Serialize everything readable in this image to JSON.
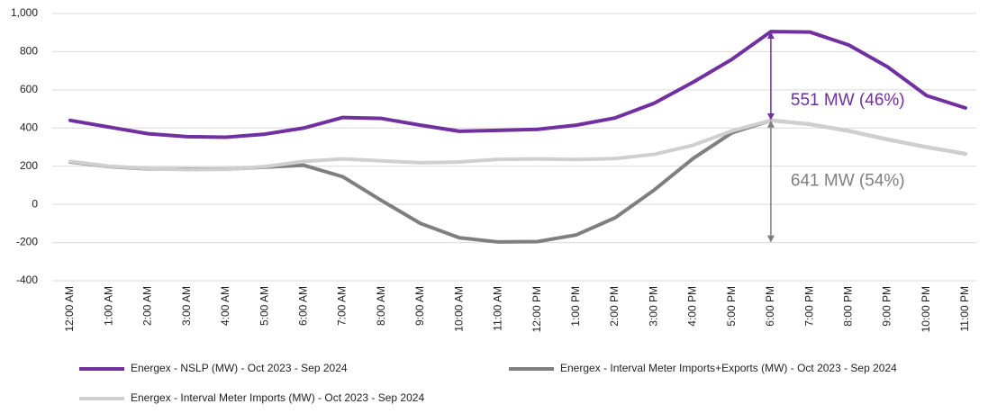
{
  "chart_data": {
    "type": "line",
    "categories": [
      "12:00 AM",
      "1:00 AM",
      "2:00 AM",
      "3:00 AM",
      "4:00 AM",
      "5:00 AM",
      "6:00 AM",
      "7:00 AM",
      "8:00 AM",
      "9:00 AM",
      "10:00 AM",
      "11:00 AM",
      "12:00 PM",
      "1:00 PM",
      "2:00 PM",
      "3:00 PM",
      "4:00 PM",
      "5:00 PM",
      "6:00 PM",
      "7:00 PM",
      "8:00 PM",
      "9:00 PM",
      "10:00 PM",
      "11:00 PM"
    ],
    "series": [
      {
        "name": "Energex - NSLP (MW) - Oct 2023 - Sep 2024",
        "color": "#7030a0",
        "values": [
          440,
          405,
          370,
          355,
          352,
          368,
          400,
          455,
          450,
          415,
          383,
          388,
          393,
          415,
          453,
          530,
          640,
          760,
          905,
          903,
          835,
          720,
          570,
          505
        ]
      },
      {
        "name": "Energex - Interval Meter Imports+Exports (MW) - Oct 2023 - Sep 2024",
        "color": "#7f7f7f",
        "values": [
          222,
          198,
          186,
          185,
          185,
          195,
          205,
          145,
          20,
          -100,
          -175,
          -197,
          -195,
          -160,
          -70,
          75,
          240,
          375,
          440,
          420,
          385,
          340,
          300,
          265
        ]
      },
      {
        "name": "Energex - Interval Meter Imports (MW) - Oct 2023 - Sep 2024",
        "color": "#cfcfcf",
        "values": [
          225,
          200,
          188,
          182,
          184,
          198,
          225,
          238,
          228,
          218,
          222,
          236,
          238,
          235,
          240,
          262,
          310,
          385,
          440,
          420,
          385,
          340,
          300,
          265
        ]
      }
    ],
    "ylim": [
      -400,
      1000
    ],
    "yticks": [
      -400,
      -200,
      0,
      200,
      400,
      600,
      800,
      {
        "value": 1000,
        "label": "1,000"
      }
    ],
    "grid": true,
    "annotations": [
      {
        "text": "551 MW (46%)",
        "color": "#7030a0",
        "category": "6:00 PM",
        "range": [
          905,
          440
        ]
      },
      {
        "text": "641 MW (54%)",
        "color": "#7f7f7f",
        "category": "6:00 PM",
        "range": [
          440,
          -200
        ]
      }
    ]
  }
}
